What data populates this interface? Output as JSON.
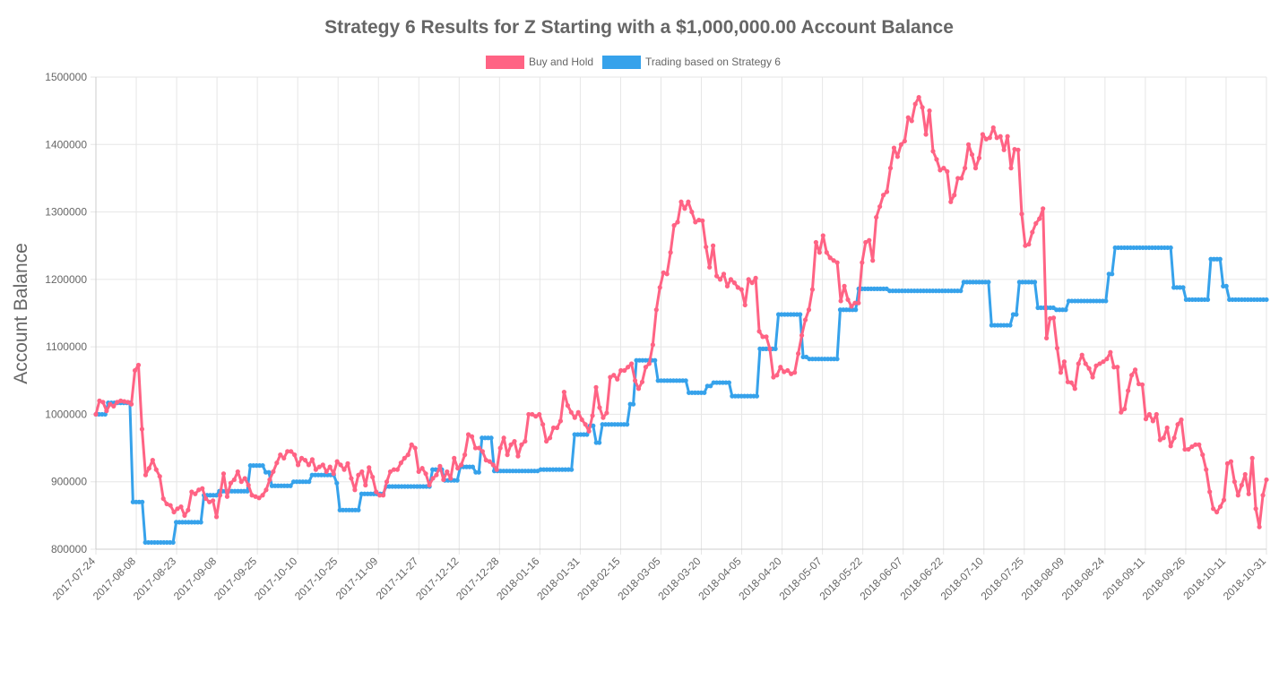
{
  "chart_data": {
    "type": "line",
    "title": "Strategy 6 Results for Z Starting with a $1,000,000.00 Account Balance",
    "ylabel": "Account Balance",
    "xlabel": "",
    "ylim": [
      800000,
      1500000
    ],
    "yticks": [
      "1500000",
      "1400000",
      "1300000",
      "1200000",
      "1100000",
      "1000000",
      "900000",
      "800000"
    ],
    "xticks": [
      "2017-07-24",
      "2017-08-08",
      "2017-08-23",
      "2017-09-08",
      "2017-09-25",
      "2017-10-10",
      "2017-10-25",
      "2017-11-09",
      "2017-11-27",
      "2017-12-12",
      "2017-12-28",
      "2018-01-16",
      "2018-01-31",
      "2018-02-15",
      "2018-03-05",
      "2018-03-20",
      "2018-04-05",
      "2018-04-20",
      "2018-05-07",
      "2018-05-22",
      "2018-06-07",
      "2018-06-22",
      "2018-07-10",
      "2018-07-25",
      "2018-08-09",
      "2018-08-24",
      "2018-09-11",
      "2018-09-26",
      "2018-10-11",
      "2018-10-31"
    ],
    "grid": true,
    "legend_position": "top",
    "series": [
      {
        "name": "Buy and Hold",
        "color": "#ff6384",
        "values": [
          1000000,
          1020000,
          1018000,
          1005000,
          1015000,
          1012000,
          1018000,
          1020000,
          1019000,
          1018000,
          1015000,
          1065000,
          1073000,
          978000,
          910000,
          920000,
          932000,
          918000,
          908000,
          875000,
          867000,
          865000,
          855000,
          860000,
          863000,
          850000,
          858000,
          885000,
          882000,
          888000,
          890000,
          875000,
          870000,
          872000,
          848000,
          880000,
          912000,
          878000,
          898000,
          903000,
          915000,
          900000,
          905000,
          895000,
          880000,
          878000,
          876000,
          880000,
          888000,
          903000,
          915000,
          928000,
          940000,
          935000,
          945000,
          945000,
          940000,
          925000,
          935000,
          932000,
          925000,
          933000,
          918000,
          922000,
          925000,
          915000,
          922000,
          912000,
          930000,
          925000,
          918000,
          927000,
          905000,
          888000,
          910000,
          915000,
          895000,
          921000,
          907000,
          885000,
          880000,
          880000,
          900000,
          915000,
          918000,
          918000,
          928000,
          935000,
          940000,
          955000,
          950000,
          915000,
          920000,
          912000,
          895000,
          905000,
          910000,
          923000,
          903000,
          915000,
          905000,
          935000,
          920000,
          925000,
          940000,
          970000,
          967000,
          950000,
          950000,
          945000,
          932000,
          930000,
          925000,
          918000,
          950000,
          965000,
          940000,
          955000,
          960000,
          938000,
          955000,
          960000,
          1000000,
          1000000,
          997000,
          1000000,
          985000,
          960000,
          965000,
          980000,
          980000,
          990000,
          1033000,
          1013000,
          1003000,
          995000,
          1003000,
          992000,
          985000,
          975000,
          998000,
          1040000,
          1010000,
          995000,
          1002000,
          1055000,
          1058000,
          1052000,
          1065000,
          1065000,
          1070000,
          1075000,
          1050000,
          1038000,
          1048000,
          1070000,
          1075000,
          1103000,
          1155000,
          1188000,
          1210000,
          1208000,
          1240000,
          1280000,
          1285000,
          1315000,
          1305000,
          1315000,
          1300000,
          1285000,
          1288000,
          1287000,
          1248000,
          1218000,
          1250000,
          1205000,
          1200000,
          1208000,
          1190000,
          1200000,
          1195000,
          1188000,
          1185000,
          1162000,
          1200000,
          1195000,
          1202000,
          1123000,
          1115000,
          1115000,
          1097000,
          1055000,
          1058000,
          1070000,
          1063000,
          1065000,
          1060000,
          1062000,
          1090000,
          1117000,
          1140000,
          1155000,
          1185000,
          1255000,
          1240000,
          1265000,
          1240000,
          1232000,
          1228000,
          1225000,
          1168000,
          1190000,
          1170000,
          1160000,
          1165000,
          1165000,
          1225000,
          1255000,
          1258000,
          1228000,
          1292000,
          1308000,
          1325000,
          1330000,
          1365000,
          1395000,
          1382000,
          1400000,
          1405000,
          1440000,
          1435000,
          1460000,
          1470000,
          1455000,
          1415000,
          1450000,
          1390000,
          1378000,
          1362000,
          1365000,
          1360000,
          1315000,
          1325000,
          1350000,
          1350000,
          1365000,
          1400000,
          1385000,
          1365000,
          1380000,
          1415000,
          1408000,
          1410000,
          1425000,
          1410000,
          1412000,
          1392000,
          1412000,
          1365000,
          1393000,
          1392000,
          1297000,
          1250000,
          1252000,
          1270000,
          1283000,
          1290000,
          1305000,
          1113000,
          1142000,
          1143000,
          1098000,
          1062000,
          1078000,
          1048000,
          1047000,
          1038000,
          1075000,
          1088000,
          1075000,
          1068000,
          1055000,
          1072000,
          1075000,
          1078000,
          1082000,
          1092000,
          1070000,
          1070000,
          1003000,
          1008000,
          1035000,
          1058000,
          1066000,
          1045000,
          1044000,
          993000,
          1000000,
          990000,
          1000000,
          962000,
          965000,
          980000,
          953000,
          965000,
          985000,
          992000,
          948000,
          948000,
          952000,
          955000,
          955000,
          940000,
          918000,
          885000,
          860000,
          855000,
          863000,
          873000,
          927000,
          930000,
          900000,
          880000,
          895000,
          911000,
          882000,
          935000,
          860000,
          833000,
          880000,
          903000
        ]
      },
      {
        "name": "Trading based on Strategy 6",
        "color": "#36a2eb",
        "values": [
          1000000,
          1000000,
          1000000,
          1000000,
          1017000,
          1017000,
          1017000,
          1017000,
          1017000,
          1017000,
          1017000,
          1017000,
          870000,
          870000,
          870000,
          870000,
          810000,
          810000,
          810000,
          810000,
          810000,
          810000,
          810000,
          810000,
          810000,
          810000,
          840000,
          840000,
          840000,
          840000,
          840000,
          840000,
          840000,
          840000,
          840000,
          880000,
          880000,
          880000,
          880000,
          880000,
          886000,
          886000,
          886000,
          886000,
          886000,
          886000,
          886000,
          886000,
          886000,
          886000,
          924000,
          924000,
          924000,
          924000,
          924000,
          914000,
          914000,
          894000,
          894000,
          894000,
          894000,
          894000,
          894000,
          894000,
          900000,
          900000,
          900000,
          900000,
          900000,
          900000,
          910000,
          910000,
          910000,
          910000,
          910000,
          910000,
          910000,
          910000,
          898000,
          858000,
          858000,
          858000,
          858000,
          858000,
          858000,
          858000,
          882000,
          882000,
          882000,
          882000,
          882000,
          882000,
          882000,
          882000,
          893000,
          893000,
          893000,
          893000,
          893000,
          893000,
          893000,
          893000,
          893000,
          893000,
          893000,
          893000,
          893000,
          893000,
          893000,
          918000,
          918000,
          918000,
          918000,
          902000,
          902000,
          902000,
          902000,
          902000,
          922000,
          922000,
          922000,
          922000,
          922000,
          914000,
          914000,
          965000,
          965000,
          965000,
          965000,
          916000,
          916000,
          916000,
          916000,
          916000,
          916000,
          916000,
          916000,
          916000,
          916000,
          916000,
          916000,
          916000,
          916000,
          916000,
          918000,
          918000,
          918000,
          918000,
          918000,
          918000,
          918000,
          918000,
          918000,
          918000,
          918000,
          970000,
          970000,
          970000,
          970000,
          970000,
          983000,
          983000,
          958000,
          958000,
          985000,
          985000,
          985000,
          985000,
          985000,
          985000,
          985000,
          985000,
          985000,
          1015000,
          1015000,
          1080000,
          1080000,
          1080000,
          1080000,
          1080000,
          1080000,
          1080000,
          1050000,
          1050000,
          1050000,
          1050000,
          1050000,
          1050000,
          1050000,
          1050000,
          1050000,
          1050000,
          1032000,
          1032000,
          1032000,
          1032000,
          1032000,
          1032000,
          1042000,
          1042000,
          1047000,
          1047000,
          1047000,
          1047000,
          1047000,
          1047000,
          1027000,
          1027000,
          1027000,
          1027000,
          1027000,
          1027000,
          1027000,
          1027000,
          1027000,
          1097000,
          1097000,
          1097000,
          1097000,
          1097000,
          1097000,
          1148000,
          1148000,
          1148000,
          1148000,
          1148000,
          1148000,
          1148000,
          1148000,
          1085000,
          1085000,
          1082000,
          1082000,
          1082000,
          1082000,
          1082000,
          1082000,
          1082000,
          1082000,
          1082000,
          1082000,
          1155000,
          1155000,
          1155000,
          1155000,
          1155000,
          1155000,
          1186000,
          1186000,
          1186000,
          1186000,
          1186000,
          1186000,
          1186000,
          1186000,
          1186000,
          1186000,
          1183000,
          1183000,
          1183000,
          1183000,
          1183000,
          1183000,
          1183000,
          1183000,
          1183000,
          1183000,
          1183000,
          1183000,
          1183000,
          1183000,
          1183000,
          1183000,
          1183000,
          1183000,
          1183000,
          1183000,
          1183000,
          1183000,
          1183000,
          1183000,
          1196000,
          1196000,
          1196000,
          1196000,
          1196000,
          1196000,
          1196000,
          1196000,
          1196000,
          1132000,
          1132000,
          1132000,
          1132000,
          1132000,
          1132000,
          1132000,
          1148000,
          1148000,
          1196000,
          1196000,
          1196000,
          1196000,
          1196000,
          1196000,
          1158000,
          1158000,
          1158000,
          1158000,
          1158000,
          1158000,
          1155000,
          1155000,
          1155000,
          1155000,
          1168000,
          1168000,
          1168000,
          1168000,
          1168000,
          1168000,
          1168000,
          1168000,
          1168000,
          1168000,
          1168000,
          1168000,
          1168000,
          1208000,
          1208000,
          1247000,
          1247000,
          1247000,
          1247000,
          1247000,
          1247000,
          1247000,
          1247000,
          1247000,
          1247000,
          1247000,
          1247000,
          1247000,
          1247000,
          1247000,
          1247000,
          1247000,
          1247000,
          1247000,
          1188000,
          1188000,
          1188000,
          1188000,
          1170000,
          1170000,
          1170000,
          1170000,
          1170000,
          1170000,
          1170000,
          1170000,
          1230000,
          1230000,
          1230000,
          1230000,
          1190000,
          1190000,
          1170000,
          1170000,
          1170000,
          1170000,
          1170000,
          1170000,
          1170000,
          1170000,
          1170000,
          1170000,
          1170000,
          1170000,
          1170000
        ]
      }
    ]
  }
}
